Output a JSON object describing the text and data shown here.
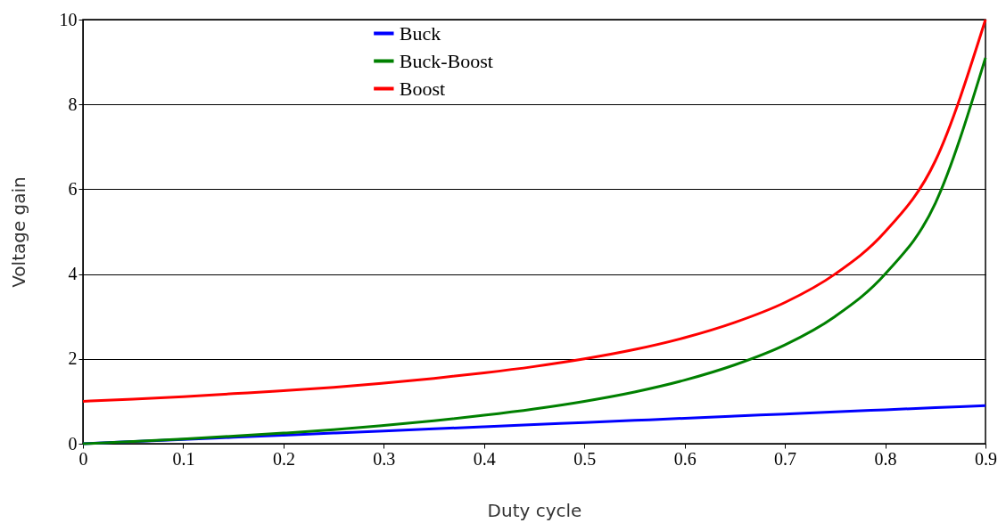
{
  "chart_data": {
    "type": "line",
    "xlabel": "Duty cycle",
    "ylabel": "Voltage gain",
    "x": [
      0,
      0.05,
      0.1,
      0.15,
      0.2,
      0.25,
      0.3,
      0.35,
      0.4,
      0.45,
      0.5,
      0.55,
      0.6,
      0.65,
      0.7,
      0.75,
      0.8,
      0.85,
      0.9
    ],
    "series": [
      {
        "name": "Buck",
        "color": "#0000ff",
        "values": [
          0,
          0.05,
          0.1,
          0.15,
          0.2,
          0.25,
          0.3,
          0.35,
          0.4,
          0.45,
          0.5,
          0.55,
          0.6,
          0.65,
          0.7,
          0.75,
          0.8,
          0.85,
          0.9
        ]
      },
      {
        "name": "Buck-Boost",
        "color": "#008000",
        "values": [
          0,
          0.05,
          0.11,
          0.18,
          0.25,
          0.33,
          0.43,
          0.54,
          0.67,
          0.82,
          1,
          1.22,
          1.5,
          1.86,
          2.33,
          3,
          4,
          5.67,
          9.1
        ]
      },
      {
        "name": "Boost",
        "color": "#ff0000",
        "values": [
          1,
          1.05,
          1.11,
          1.18,
          1.25,
          1.33,
          1.43,
          1.54,
          1.67,
          1.82,
          2,
          2.22,
          2.5,
          2.86,
          3.33,
          4,
          5,
          6.67,
          10
        ]
      }
    ],
    "xlim": [
      0,
      0.9
    ],
    "xticks": [
      0,
      0.1,
      0.2,
      0.3,
      0.4,
      0.5,
      0.6,
      0.7,
      0.8,
      0.9
    ],
    "ylim": [
      0,
      10
    ],
    "yticks": [
      0,
      2,
      4,
      6,
      8,
      10
    ],
    "grid": "y",
    "legend": "top",
    "marker": "none",
    "line_style": "solid"
  }
}
